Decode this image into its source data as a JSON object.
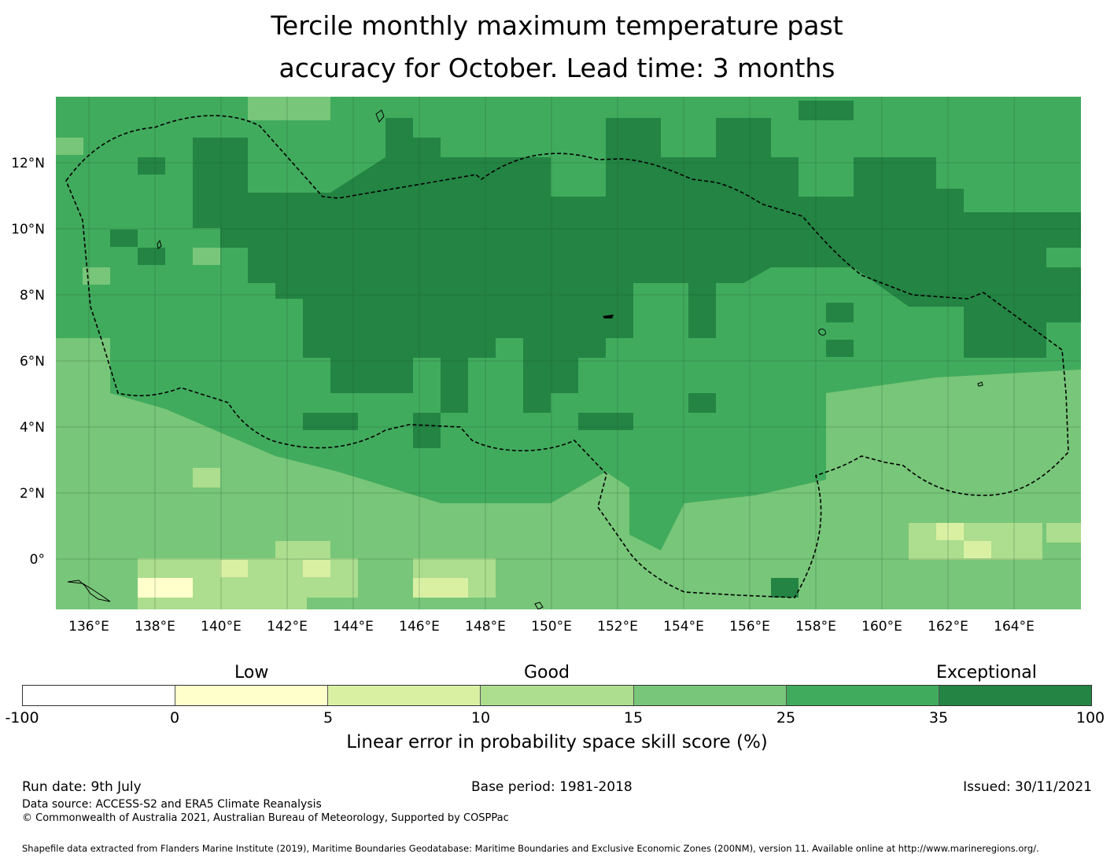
{
  "title": {
    "line1": "Tercile monthly maximum temperature past",
    "line2": "accuracy for October. Lead time: 3 months"
  },
  "map": {
    "lon_range": [
      135,
      166
    ],
    "lat_range": [
      -1.5,
      14
    ],
    "x_ticks": [
      "136°E",
      "138°E",
      "140°E",
      "142°E",
      "144°E",
      "146°E",
      "148°E",
      "150°E",
      "152°E",
      "154°E",
      "156°E",
      "158°E",
      "160°E",
      "162°E",
      "164°E"
    ],
    "y_ticks": [
      "12°N",
      "10°N",
      "8°N",
      "6°N",
      "4°N",
      "2°N",
      "0°"
    ],
    "gridlines": true
  },
  "colorbar": {
    "category_labels": [
      "Low",
      "Good",
      "Exceptional"
    ],
    "ticks": [
      "-100",
      "0",
      "5",
      "10",
      "15",
      "25",
      "35",
      "100"
    ],
    "colors": [
      "#ffffff",
      "#ffffcc",
      "#d9f0a3",
      "#addd8e",
      "#78c679",
      "#41ab5d",
      "#238443"
    ],
    "title": "Linear error in probability space skill score (%)"
  },
  "footer": {
    "run_date": "Run date: 9th July",
    "base_period": "Base period: 1981-2018",
    "issued": "Issued: 30/11/2021",
    "data_source": "Data source: ACCESS-S2 and ERA5 Climate Reanalysis",
    "copyright": "© Commonwealth of Australia 2021, Australian Bureau of Meteorology, Supported by COSPPac",
    "shapefile": "Shapefile data extracted from Flanders Marine Institute (2019), Maritime Boundaries Geodatabase: Maritime Boundaries and Exclusive Economic Zones (200NM), version 11. Available online at http://www.marineregions.org/."
  }
}
